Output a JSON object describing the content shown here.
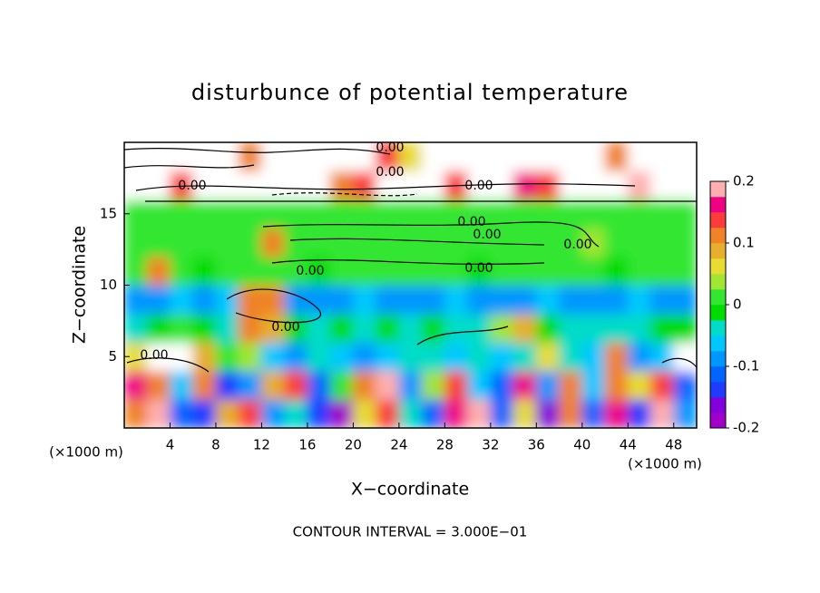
{
  "chart_data": {
    "type": "contour",
    "title": "disturbunce of potential temperature",
    "xlabel": "X−coordinate",
    "ylabel": "Z−coordinate",
    "x_unit_labels": [
      "(×1000 m)",
      "(×1000 m)"
    ],
    "footer": "CONTOUR INTERVAL = 3.000E−01",
    "contour_labels": [
      "0.00",
      "0.00",
      "0.00",
      "0.00",
      "0.00",
      "0.00",
      "0.00",
      "0.00",
      "0.00",
      "0.00",
      "0.00"
    ],
    "xlim": [
      0,
      50
    ],
    "ylim": [
      0,
      20
    ],
    "xticks": [
      4,
      8,
      12,
      16,
      20,
      24,
      28,
      32,
      36,
      40,
      44,
      48
    ],
    "yticks": [
      5,
      10,
      15
    ],
    "x": [
      1,
      3,
      5,
      7,
      9,
      11,
      13,
      15,
      17,
      19,
      21,
      23,
      25,
      27,
      29,
      31,
      33,
      35,
      37,
      39,
      41,
      43,
      45,
      47,
      49
    ],
    "y": [
      1,
      3,
      5,
      7,
      9,
      11,
      13,
      15,
      17,
      19
    ],
    "z": [
      [
        0.12,
        0.18,
        -0.12,
        -0.15,
        0.08,
        0.15,
        -0.1,
        -0.05,
        -0.14,
        -0.18,
        0.06,
        0.14,
        -0.04,
        -0.12,
        0.16,
        0.2,
        -0.12,
        0.06,
        -0.16,
        0.12,
        -0.12,
        0.16,
        -0.14,
        0.18,
        -0.1
      ],
      [
        0.16,
        0.1,
        -0.06,
        0.12,
        -0.14,
        -0.1,
        0.08,
        0.14,
        -0.12,
        0.02,
        0.12,
        0.18,
        -0.1,
        0.04,
        0.14,
        -0.06,
        -0.12,
        0.16,
        -0.08,
        0.12,
        -0.06,
        0.1,
        0.06,
        0.14,
        -0.12
      ],
      [
        0.06,
        0.25,
        0.25,
        0.08,
        0.02,
        0.04,
        -0.06,
        -0.08,
        -0.04,
        -0.06,
        -0.08,
        -0.06,
        -0.05,
        -0.04,
        -0.06,
        -0.04,
        -0.06,
        -0.04,
        0.06,
        -0.04,
        -0.06,
        0.12,
        -0.1,
        -0.06,
        0.25
      ],
      [
        -0.03,
        -0.02,
        0.0,
        -0.02,
        -0.03,
        0.1,
        0.08,
        -0.02,
        -0.03,
        -0.02,
        -0.03,
        -0.02,
        -0.03,
        -0.02,
        -0.04,
        -0.03,
        0.04,
        0.08,
        -0.02,
        -0.03,
        -0.03,
        -0.04,
        -0.03,
        -0.02,
        -0.02
      ],
      [
        -0.08,
        -0.09,
        -0.07,
        -0.08,
        -0.06,
        0.12,
        0.1,
        -0.08,
        -0.09,
        -0.08,
        -0.07,
        -0.08,
        -0.09,
        -0.08,
        -0.07,
        -0.08,
        -0.09,
        -0.08,
        -0.07,
        -0.08,
        -0.09,
        -0.08,
        -0.07,
        -0.08,
        -0.09
      ],
      [
        0.0,
        0.1,
        0.0,
        -0.01,
        0.0,
        0.0,
        0.01,
        0.0,
        -0.01,
        0.0,
        0.01,
        0.0,
        0.0,
        0.01,
        0.0,
        -0.01,
        0.0,
        0.0,
        0.01,
        0.0,
        0.0,
        -0.01,
        0.0,
        0.01,
        0.0
      ],
      [
        0.01,
        0.0,
        0.01,
        0.0,
        0.01,
        0.0,
        0.12,
        0.01,
        0.0,
        0.01,
        0.0,
        0.01,
        0.0,
        0.01,
        0.0,
        0.01,
        0.0,
        0.01,
        0.0,
        0.01,
        0.03,
        0.0,
        0.01,
        0.0,
        0.01
      ],
      [
        0.0,
        0.01,
        0.0,
        0.01,
        0.0,
        0.01,
        0.0,
        0.01,
        0.0,
        0.01,
        0.0,
        0.01,
        0.0,
        0.01,
        0.0,
        0.01,
        0.0,
        0.0,
        0.01,
        0.0,
        0.0,
        0.0,
        0.01,
        0.0,
        0.01
      ],
      [
        0.25,
        0.25,
        0.15,
        0.25,
        0.25,
        0.25,
        0.25,
        0.25,
        0.25,
        0.12,
        0.15,
        0.25,
        0.25,
        0.25,
        0.14,
        0.25,
        0.25,
        0.16,
        0.14,
        0.25,
        0.25,
        0.25,
        0.18,
        0.25,
        0.25
      ],
      [
        0.25,
        0.25,
        0.25,
        0.25,
        0.25,
        0.12,
        0.25,
        0.25,
        0.25,
        0.25,
        0.25,
        0.15,
        0.05,
        0.25,
        0.25,
        0.25,
        0.25,
        0.25,
        0.25,
        0.25,
        0.25,
        0.12,
        0.25,
        0.25,
        0.25
      ]
    ],
    "colorbar": {
      "lim": [
        -0.2,
        0.2
      ],
      "ticks": [
        -0.2,
        -0.1,
        0,
        0.1,
        0.2
      ],
      "colors": [
        "#a000c8",
        "#8200dc",
        "#1e3cff",
        "#0064ff",
        "#0096ff",
        "#00c8ff",
        "#00dcc8",
        "#00dc00",
        "#32e632",
        "#a0e632",
        "#e6dc32",
        "#e6af2d",
        "#f08228",
        "#fa3c3c",
        "#f00082",
        "#ffafaf"
      ]
    }
  }
}
